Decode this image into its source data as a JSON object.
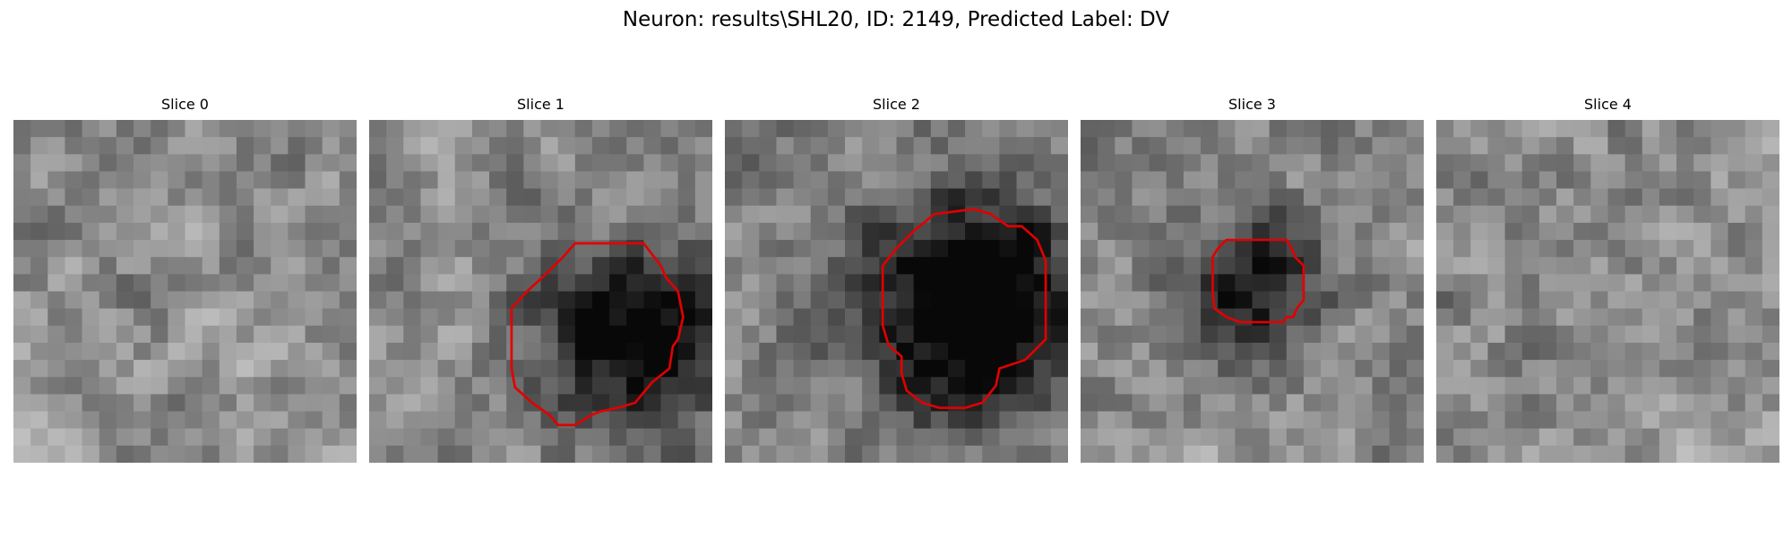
{
  "figure": {
    "title": "Neuron: results\\SHL20, ID: 2149, Predicted Label: DV",
    "contour_color": "#e00000"
  },
  "panels": [
    {
      "title": "Slice 0",
      "seed": 11,
      "blob": null,
      "contour": null
    },
    {
      "title": "Slice 1",
      "seed": 23,
      "blob": {
        "cx": 15.5,
        "cy": 12.5,
        "r": 6.0,
        "depth": 0.55
      },
      "contour": [
        [
          13,
          7.2
        ],
        [
          16,
          7.2
        ],
        [
          17,
          8.5
        ],
        [
          17.3,
          9.2
        ],
        [
          18,
          10
        ],
        [
          18.3,
          11.5
        ],
        [
          18,
          12.8
        ],
        [
          17.7,
          13.2
        ],
        [
          17.5,
          14.5
        ],
        [
          16.5,
          15.3
        ],
        [
          15.5,
          16.5
        ],
        [
          14.5,
          16.8
        ],
        [
          13.5,
          17
        ],
        [
          13,
          17.2
        ],
        [
          12,
          17.8
        ],
        [
          11,
          17.8
        ],
        [
          10.5,
          17.2
        ],
        [
          9.5,
          16.5
        ],
        [
          8.5,
          15.6
        ],
        [
          8.3,
          14.5
        ],
        [
          8.3,
          12.5
        ],
        [
          8.3,
          11
        ],
        [
          9.2,
          10
        ],
        [
          10.3,
          9
        ],
        [
          11.3,
          8
        ],
        [
          12,
          7.2
        ]
      ]
    },
    {
      "title": "Slice 2",
      "seed": 37,
      "blob": {
        "cx": 14.5,
        "cy": 11.0,
        "r": 7.0,
        "depth": 0.75
      },
      "contour": [
        [
          12.2,
          5.5
        ],
        [
          14.5,
          5.2
        ],
        [
          15.5,
          5.5
        ],
        [
          16.5,
          6.2
        ],
        [
          17.3,
          6.2
        ],
        [
          18.2,
          7
        ],
        [
          18.7,
          8.2
        ],
        [
          18.7,
          9.5
        ],
        [
          18.7,
          11
        ],
        [
          18.7,
          12.8
        ],
        [
          18,
          13.5
        ],
        [
          17.5,
          14
        ],
        [
          16.6,
          14.3
        ],
        [
          16,
          14.5
        ],
        [
          15.8,
          15.5
        ],
        [
          15,
          16.5
        ],
        [
          14,
          16.8
        ],
        [
          12.5,
          16.8
        ],
        [
          11.5,
          16.5
        ],
        [
          10.6,
          15.8
        ],
        [
          10.3,
          14.8
        ],
        [
          10.3,
          13.8
        ],
        [
          9.6,
          13.2
        ],
        [
          9.5,
          13
        ],
        [
          9.2,
          12
        ],
        [
          9.2,
          10
        ],
        [
          9.2,
          8.5
        ],
        [
          10,
          7.5
        ],
        [
          11,
          6.5
        ]
      ]
    },
    {
      "title": "Slice 3",
      "seed": 53,
      "blob": {
        "cx": 10.0,
        "cy": 9.5,
        "r": 4.5,
        "depth": 0.5
      },
      "contour": [
        [
          8.5,
          7
        ],
        [
          10.5,
          7
        ],
        [
          12,
          7
        ],
        [
          12.3,
          7.5
        ],
        [
          12.5,
          8
        ],
        [
          13,
          8.5
        ],
        [
          13,
          9.5
        ],
        [
          13,
          10.5
        ],
        [
          12.6,
          11
        ],
        [
          12.4,
          11.5
        ],
        [
          12,
          11.5
        ],
        [
          11.8,
          11.8
        ],
        [
          10.5,
          11.8
        ],
        [
          9.3,
          11.8
        ],
        [
          8.5,
          11.5
        ],
        [
          7.8,
          11
        ],
        [
          7.7,
          10
        ],
        [
          7.7,
          9
        ],
        [
          7.7,
          8
        ],
        [
          8,
          7.5
        ]
      ]
    },
    {
      "title": "Slice 4",
      "seed": 71,
      "blob": null,
      "contour": null
    }
  ]
}
